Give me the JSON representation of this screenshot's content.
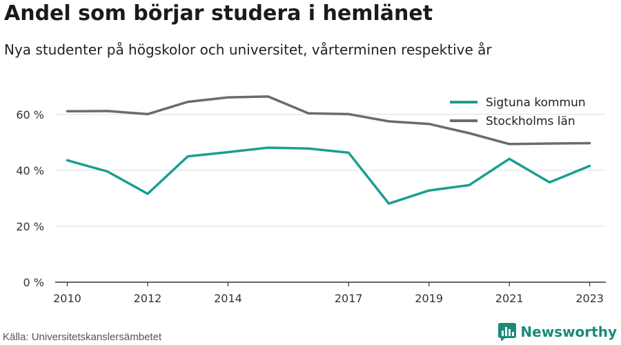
{
  "header": {
    "title": "Andel som börjar studera i hemlänet",
    "subtitle": "Nya studenter på högskolor och universitet, vårterminen respektive år"
  },
  "footer": {
    "source": "Källa: Universitetskanslersämbetet",
    "brand": "Newsworthy"
  },
  "colors": {
    "sigtuna": "#1a9e91",
    "stockholm": "#6b6b6b",
    "grid": "#dddddd",
    "axis": "#333333",
    "brand": "#1a8a7a"
  },
  "chart_data": {
    "type": "line",
    "x": [
      2010,
      2011,
      2012,
      2013,
      2014,
      2015,
      2016,
      2017,
      2018,
      2019,
      2020,
      2021,
      2022,
      2023
    ],
    "x_tick_values": [
      2010,
      2012,
      2014,
      2017,
      2019,
      2021,
      2023
    ],
    "x_tick_labels": [
      "2010",
      "2012",
      "2014",
      "2017",
      "2019",
      "2021",
      "2023"
    ],
    "y_tick_values": [
      0,
      20,
      40,
      60
    ],
    "y_tick_labels": [
      "0 %",
      "20 %",
      "40 %",
      "60 %"
    ],
    "ylim": [
      0,
      75
    ],
    "xlim": [
      2009.7,
      2023.4
    ],
    "grid": true,
    "legend_position": "top-right",
    "series": [
      {
        "name": "Sigtuna kommun",
        "color_key": "sigtuna",
        "values": [
          43.6,
          39.6,
          31.6,
          45.0,
          46.5,
          48.1,
          47.8,
          46.3,
          28.1,
          32.8,
          34.7,
          44.1,
          35.7,
          41.6
        ]
      },
      {
        "name": "Stockholms län",
        "color_key": "stockholm",
        "values": [
          61.1,
          61.2,
          60.1,
          64.5,
          66.1,
          66.4,
          60.4,
          60.1,
          57.5,
          56.6,
          53.3,
          49.4,
          49.6,
          49.7
        ]
      }
    ]
  }
}
